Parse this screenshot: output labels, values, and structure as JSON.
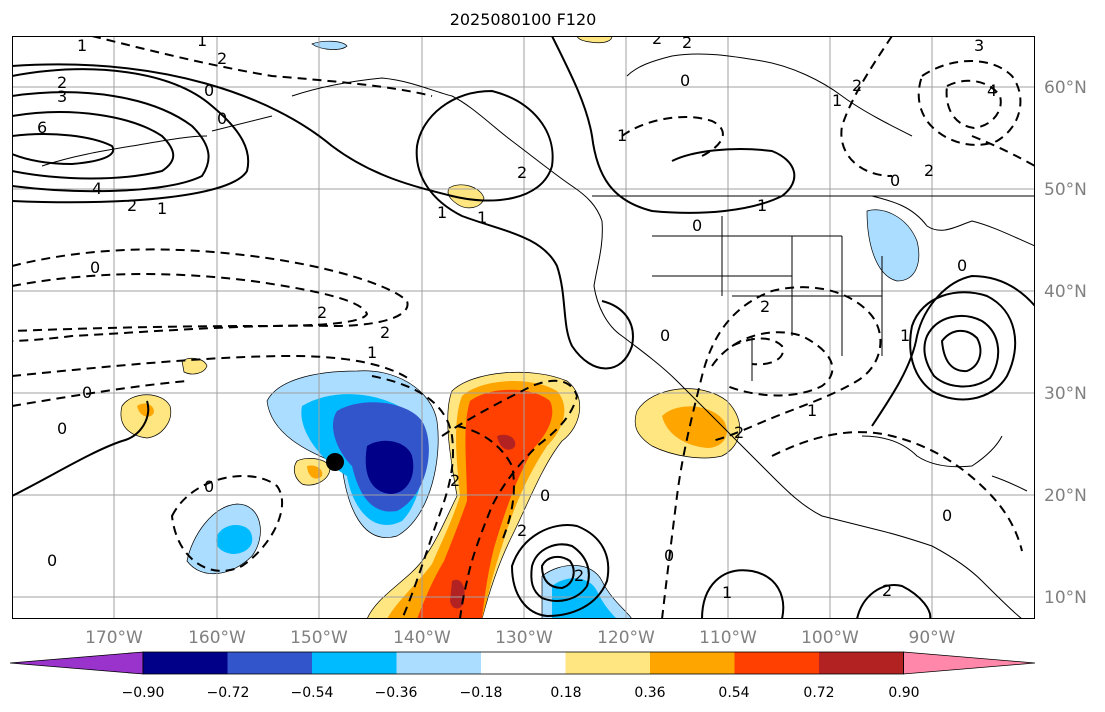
{
  "title": "2025080100 F120",
  "map": {
    "lon_labels": [
      "170°W",
      "160°W",
      "150°W",
      "140°W",
      "130°W",
      "120°W",
      "110°W",
      "100°W",
      "90°W"
    ],
    "lat_labels": [
      "60°N",
      "50°N",
      "40°N",
      "30°N",
      "20°N",
      "10°N"
    ],
    "contour_labels": [
      "1",
      "2",
      "3",
      "6",
      "4",
      "2",
      "1",
      "0",
      "0",
      "0",
      "2",
      "1",
      "2",
      "0",
      "1",
      "0",
      "0",
      "2",
      "1",
      "0",
      "1",
      "2",
      "2",
      "0",
      "2",
      "1",
      "1",
      "2",
      "0",
      "0",
      "0",
      "2",
      "3",
      "4",
      "2",
      "0",
      "2",
      "1",
      "0",
      "1",
      "0",
      "2",
      "2",
      "2",
      "0",
      "1",
      "2",
      "1"
    ],
    "marker": "black-dot"
  },
  "colorbar": {
    "ticks": [
      "−0.90",
      "−0.72",
      "−0.54",
      "−0.36",
      "−0.18",
      "0.18",
      "0.36",
      "0.54",
      "0.72",
      "0.90"
    ],
    "colors": [
      "#9933cc",
      "#000088",
      "#3355cc",
      "#00bbff",
      "#aaddff",
      "#ffffff",
      "#ffe680",
      "#ffa500",
      "#ff4000",
      "#b22222",
      "#ff88aa"
    ]
  }
}
